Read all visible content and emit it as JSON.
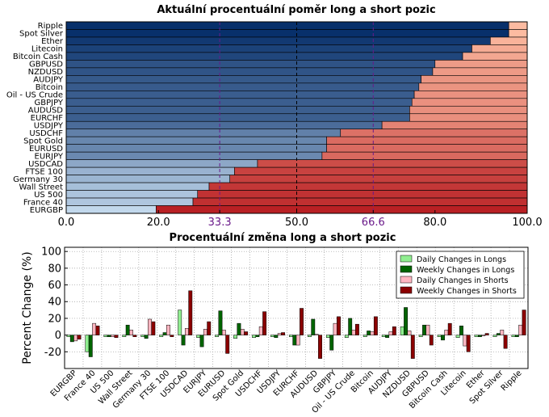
{
  "chart_data": [
    {
      "type": "bar",
      "orientation": "horizontal",
      "stacked": true,
      "title": "Aktuální procentuální poměr long a short pozic",
      "categories": [
        "Ripple",
        "Spot Silver",
        "Ether",
        "Litecoin",
        "Bitcoin Cash",
        "GBPUSD",
        "NZDUSD",
        "AUDJPY",
        "Bitcoin",
        "Oil - US Crude",
        "GBPJPY",
        "AUDUSD",
        "EURCHF",
        "USDJPY",
        "USDCHF",
        "Spot Gold",
        "EURUSD",
        "EURJPY",
        "USDCAD",
        "FTSE 100",
        "Germany 30",
        "Wall Street",
        "US 500",
        "France 40",
        "EURGBP"
      ],
      "long_pct": [
        96,
        96,
        92,
        88,
        86,
        80,
        79.5,
        77,
        76.5,
        75.5,
        75,
        74.5,
        74.5,
        68.5,
        59.5,
        56.5,
        56.5,
        55.5,
        41.5,
        36.5,
        35.5,
        31,
        28.5,
        27.5,
        19.5
      ],
      "xlim": [
        0,
        100
      ],
      "xticks": [
        0,
        20,
        33.3,
        50,
        66.6,
        80,
        100
      ],
      "xtick_labels": [
        "0.0",
        "20.0",
        "33.3",
        "50.0",
        "66.6",
        "80.0",
        "100.0"
      ],
      "reference_lines": [
        33.3,
        50,
        66.6
      ],
      "colors": {
        "long_high": "#08306b",
        "long_low": "#c6dbef",
        "short_low": "#fcbba1",
        "short_high": "#b81d22",
        "ref_purple": "#6a1a8a"
      }
    },
    {
      "type": "bar",
      "title": "Procentuální změna long a short pozic",
      "ylabel": "Percent Change (%)",
      "ylim": [
        -40,
        105
      ],
      "yticks": [
        -20,
        0,
        20,
        40,
        60,
        80,
        100
      ],
      "grid": true,
      "legend_position": "top-right",
      "categories": [
        "EURGBP",
        "France 40",
        "US 500",
        "Wall Street",
        "Germany 30",
        "FTSE 100",
        "USDCAD",
        "EURJPY",
        "EURUSD",
        "Spot Gold",
        "USDCHF",
        "USDJPY",
        "EURCHF",
        "AUDUSD",
        "GBPJPY",
        "Oil - US Crude",
        "Bitcoin",
        "AUDJPY",
        "NZDUSD",
        "GBPUSD",
        "Bitcoin Cash",
        "Litecoin",
        "Ether",
        "Spot Silver",
        "Ripple"
      ],
      "series": [
        {
          "name": "Daily Changes in Longs",
          "color": "#90ee90",
          "values": [
            -2,
            -20,
            -2,
            -2,
            -2,
            -2,
            30,
            -3,
            -2,
            -4,
            -3,
            -2,
            -2,
            -2,
            -3,
            -3,
            -2,
            -2,
            10,
            -2,
            -2,
            -3,
            -2,
            -2,
            -2
          ]
        },
        {
          "name": "Weekly Changes in Longs",
          "color": "#006400",
          "values": [
            -8,
            -26,
            -2,
            12,
            -4,
            3,
            -12,
            -14,
            29,
            14,
            -2,
            -3,
            -12,
            19,
            -18,
            20,
            5,
            -3,
            33,
            12,
            -6,
            11,
            -2,
            2,
            -2
          ]
        },
        {
          "name": "Daily Changes in Shorts",
          "color": "#ffb6c1",
          "values": [
            -7,
            14,
            -2,
            6,
            19,
            12,
            8,
            7,
            6,
            7,
            10,
            2,
            -12,
            1,
            14,
            6,
            4,
            4,
            5,
            12,
            6,
            -13,
            -1,
            6,
            12
          ]
        },
        {
          "name": "Weekly Changes in Shorts",
          "color": "#8b0000",
          "values": [
            -5,
            11,
            -3,
            -2,
            16,
            -2,
            53,
            16,
            -22,
            4,
            28,
            3,
            32,
            -28,
            22,
            13,
            22,
            10,
            -28,
            -12,
            14,
            -20,
            2,
            -16,
            30
          ]
        }
      ]
    }
  ]
}
